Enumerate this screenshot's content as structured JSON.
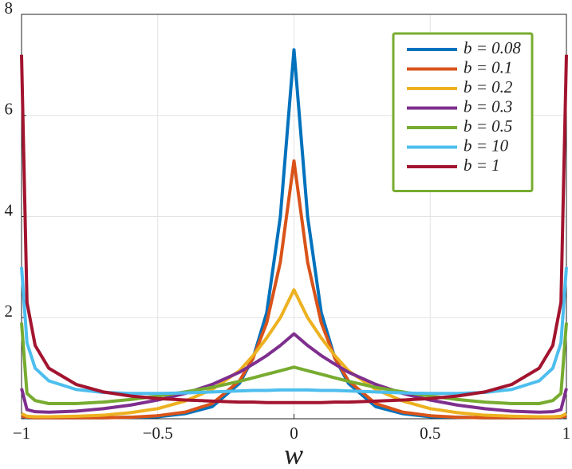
{
  "chart_data": {
    "type": "line",
    "x_label": "w",
    "x": [
      -1,
      -0.98,
      -0.95,
      -0.9,
      -0.8,
      -0.7,
      -0.6,
      -0.5,
      -0.4,
      -0.3,
      -0.2,
      -0.15,
      -0.1,
      -0.05,
      0,
      0.05,
      0.1,
      0.15,
      0.2,
      0.3,
      0.4,
      0.5,
      0.6,
      0.7,
      0.8,
      0.9,
      0.95,
      0.98,
      1
    ],
    "series": [
      {
        "name": "b = 0.08",
        "color": "#0072bd",
        "values": [
          0.05,
          0.02,
          0.02,
          0.02,
          0.02,
          0.02,
          0.03,
          0.04,
          0.1,
          0.24,
          0.7,
          1.2,
          2.1,
          4.0,
          7.3,
          4.0,
          2.1,
          1.2,
          0.7,
          0.24,
          0.1,
          0.04,
          0.03,
          0.02,
          0.02,
          0.02,
          0.02,
          0.02,
          0.05
        ]
      },
      {
        "name": "b = 0.1",
        "color": "#d95319",
        "values": [
          0.05,
          0.03,
          0.02,
          0.02,
          0.02,
          0.02,
          0.03,
          0.06,
          0.13,
          0.3,
          0.75,
          1.2,
          1.9,
          3.1,
          5.1,
          3.1,
          1.9,
          1.2,
          0.75,
          0.3,
          0.13,
          0.06,
          0.03,
          0.02,
          0.02,
          0.02,
          0.02,
          0.03,
          0.05
        ]
      },
      {
        "name": "b = 0.2",
        "color": "#edb120",
        "values": [
          0.1,
          0.05,
          0.04,
          0.04,
          0.05,
          0.07,
          0.12,
          0.2,
          0.35,
          0.58,
          0.95,
          1.25,
          1.6,
          2.0,
          2.55,
          2.0,
          1.6,
          1.25,
          0.95,
          0.58,
          0.35,
          0.2,
          0.12,
          0.07,
          0.05,
          0.04,
          0.04,
          0.05,
          0.1
        ]
      },
      {
        "name": "b = 0.3",
        "color": "#7e2f8e",
        "values": [
          0.6,
          0.18,
          0.14,
          0.13,
          0.15,
          0.2,
          0.27,
          0.37,
          0.5,
          0.68,
          0.92,
          1.08,
          1.25,
          1.45,
          1.68,
          1.45,
          1.25,
          1.08,
          0.92,
          0.68,
          0.5,
          0.37,
          0.27,
          0.2,
          0.15,
          0.13,
          0.14,
          0.18,
          0.6
        ]
      },
      {
        "name": "b = 0.5",
        "color": "#77ac30",
        "values": [
          1.9,
          0.5,
          0.36,
          0.3,
          0.3,
          0.33,
          0.38,
          0.45,
          0.53,
          0.62,
          0.74,
          0.81,
          0.88,
          0.95,
          1.02,
          0.95,
          0.88,
          0.81,
          0.74,
          0.62,
          0.53,
          0.45,
          0.38,
          0.33,
          0.3,
          0.3,
          0.36,
          0.5,
          1.9
        ]
      },
      {
        "name": "b = 10",
        "color": "#4dbeee",
        "values": [
          3.0,
          1.5,
          1.0,
          0.75,
          0.58,
          0.52,
          0.5,
          0.5,
          0.51,
          0.53,
          0.55,
          0.56,
          0.56,
          0.57,
          0.57,
          0.57,
          0.56,
          0.56,
          0.55,
          0.53,
          0.51,
          0.5,
          0.5,
          0.52,
          0.58,
          0.75,
          1.0,
          1.5,
          3.0
        ]
      },
      {
        "name": "b = 1",
        "color": "#a2142f",
        "values": [
          7.2,
          2.3,
          1.45,
          1.0,
          0.68,
          0.53,
          0.45,
          0.4,
          0.37,
          0.35,
          0.33,
          0.33,
          0.32,
          0.32,
          0.32,
          0.32,
          0.32,
          0.33,
          0.33,
          0.35,
          0.37,
          0.4,
          0.45,
          0.53,
          0.68,
          1.0,
          1.45,
          2.3,
          7.2
        ]
      }
    ],
    "xlim": [
      -1,
      1
    ],
    "ylim": [
      0,
      8
    ],
    "xticks": [
      {
        "value": -1,
        "label": "−1"
      },
      {
        "value": -0.5,
        "label": "−0.5"
      },
      0,
      0.5,
      1
    ],
    "yticks": [
      2,
      4,
      6,
      8
    ],
    "grid": true,
    "legend": "top-right",
    "legend_border_color": "#77ac30"
  }
}
